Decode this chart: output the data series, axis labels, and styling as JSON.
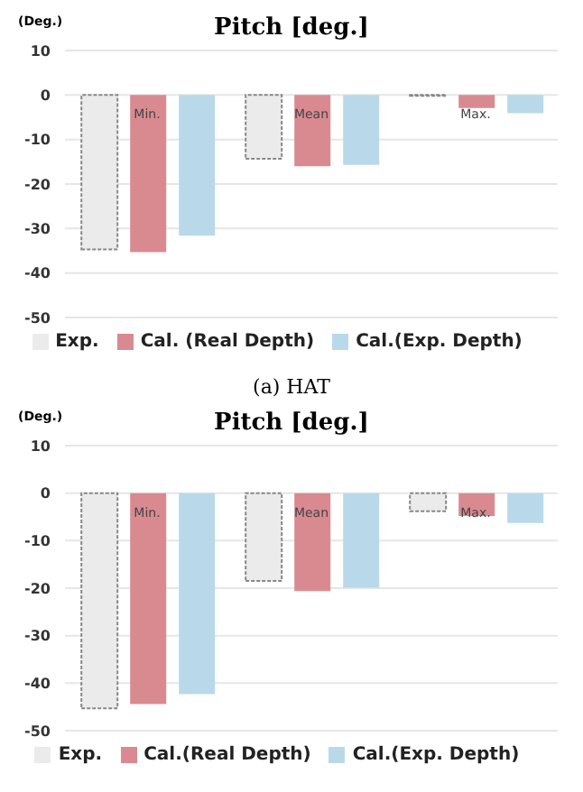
{
  "chart_data": [
    {
      "type": "bar",
      "title": "Pitch [deg.]",
      "ylabel": "(Deg.)",
      "categories": [
        "Min.",
        "Mean",
        "Max."
      ],
      "series": [
        {
          "name": "Exp.",
          "color": "#ebebeb",
          "values": [
            -34.7,
            -14.3,
            -0.2
          ]
        },
        {
          "name": "Cal. (Real Depth)",
          "color": "#d98a90",
          "values": [
            -35.3,
            -16,
            -2.9
          ]
        },
        {
          "name": "Cal.(Exp. Depth)",
          "color": "#b9d9ea",
          "values": [
            -31.6,
            -15.7,
            -4.1
          ]
        }
      ],
      "ylim": [
        -50,
        10
      ],
      "yticks": [
        -50,
        -40,
        -30,
        -20,
        -10,
        0,
        10
      ],
      "grid": "y",
      "legend": "bottom",
      "annotations": [
        "(a) HAT"
      ]
    },
    {
      "type": "bar",
      "title": "Pitch [deg.]",
      "ylabel": "(Deg.)",
      "categories": [
        "Min.",
        "Mean",
        "Max."
      ],
      "series": [
        {
          "name": "Exp.",
          "color": "#ebebeb",
          "values": [
            -45.3,
            -18.5,
            -3.8
          ]
        },
        {
          "name": "Cal.(Real Depth)",
          "color": "#d98a90",
          "values": [
            -44.4,
            -20.6,
            -4.8
          ]
        },
        {
          "name": "Cal.(Exp. Depth)",
          "color": "#b9d9ea",
          "values": [
            -42.3,
            -19.9,
            -6.3
          ]
        }
      ],
      "ylim": [
        -50,
        10
      ],
      "yticks": [
        -50,
        -40,
        -30,
        -20,
        -10,
        0,
        10
      ],
      "grid": "y",
      "legend": "bottom"
    }
  ]
}
